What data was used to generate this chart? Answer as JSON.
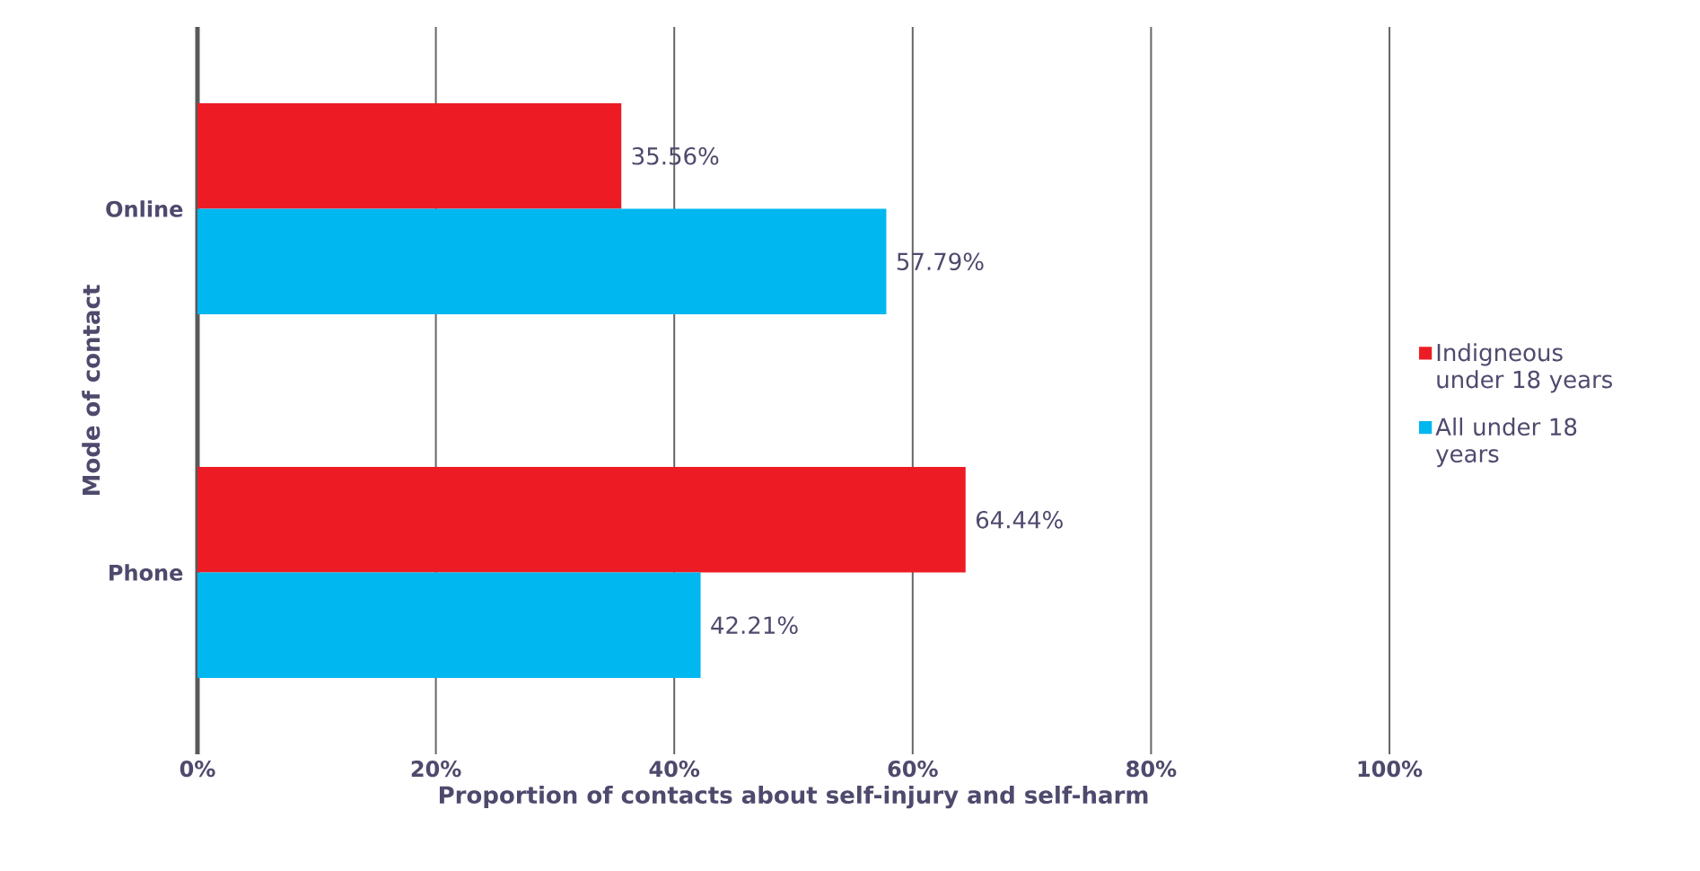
{
  "chart_data": {
    "type": "bar",
    "orientation": "horizontal",
    "xlabel": "Proportion of contacts about self-injury and self-harm",
    "ylabel": "Mode of contact",
    "categories": [
      "Online",
      "Phone"
    ],
    "series": [
      {
        "name": "Indigneous under 18 years",
        "color": "#ed1c24",
        "values": [
          35.56,
          64.44
        ],
        "value_labels": [
          "35.56%",
          "64.44%"
        ]
      },
      {
        "name": "All under 18 years",
        "color": "#00b7ef",
        "values": [
          57.79,
          42.21
        ],
        "value_labels": [
          "57.79%",
          "42.21%"
        ]
      }
    ],
    "xlim": [
      0,
      100
    ],
    "xticks": [
      {
        "value": 0,
        "label": "0%"
      },
      {
        "value": 20,
        "label": "20%"
      },
      {
        "value": 40,
        "label": "40%"
      },
      {
        "value": 60,
        "label": "60%"
      },
      {
        "value": 80,
        "label": "80%"
      },
      {
        "value": 100,
        "label": "100%"
      }
    ],
    "grid": "x",
    "legend": "right"
  }
}
